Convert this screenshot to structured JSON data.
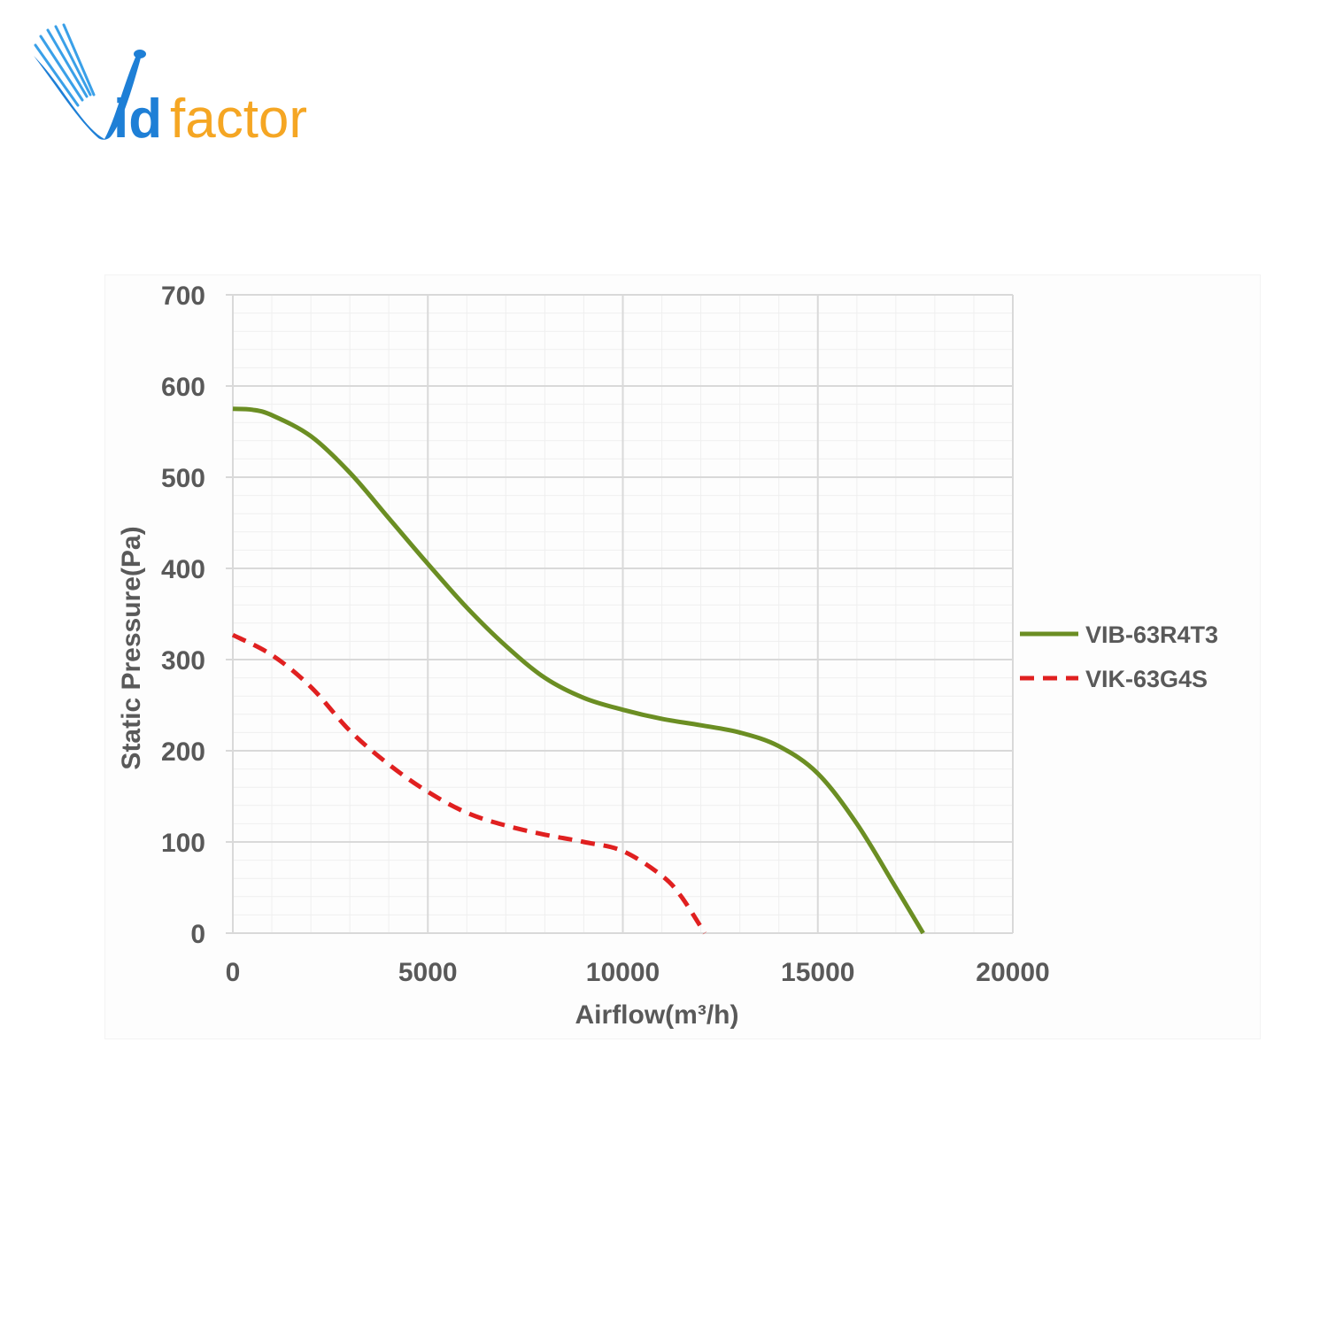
{
  "brand": {
    "logo_text": "Vidfactor",
    "colors": {
      "blue": "#1e7fd6",
      "orange": "#f5a623"
    }
  },
  "chart_data": {
    "type": "line",
    "title": "",
    "xlabel": "Airflow(m³/h)",
    "ylabel": "Static Pressure(Pa)",
    "xlim": [
      0,
      20000
    ],
    "ylim": [
      0,
      700
    ],
    "xticks": [
      0,
      5000,
      10000,
      15000,
      20000
    ],
    "yticks": [
      0,
      100,
      200,
      300,
      400,
      500,
      600,
      700
    ],
    "grid": true,
    "legend_position": "right",
    "series": [
      {
        "name": "VIB-63R4T3",
        "color": "#6b8e23",
        "style": "solid",
        "x": [
          0,
          500,
          1000,
          2000,
          3000,
          4000,
          5000,
          6000,
          7000,
          8000,
          9000,
          10000,
          11000,
          12000,
          13000,
          14000,
          15000,
          16000,
          17000,
          17700
        ],
        "y": [
          575,
          574,
          568,
          545,
          505,
          455,
          405,
          357,
          315,
          280,
          258,
          245,
          235,
          228,
          220,
          205,
          175,
          120,
          50,
          0
        ]
      },
      {
        "name": "VIK-63G4S",
        "color": "#e02020",
        "style": "dashed",
        "x": [
          0,
          1000,
          2000,
          3000,
          4000,
          5000,
          6000,
          7000,
          8000,
          9000,
          10000,
          11000,
          11500,
          12100
        ],
        "y": [
          327,
          305,
          270,
          222,
          185,
          155,
          132,
          118,
          108,
          100,
          90,
          63,
          40,
          0
        ]
      }
    ]
  }
}
